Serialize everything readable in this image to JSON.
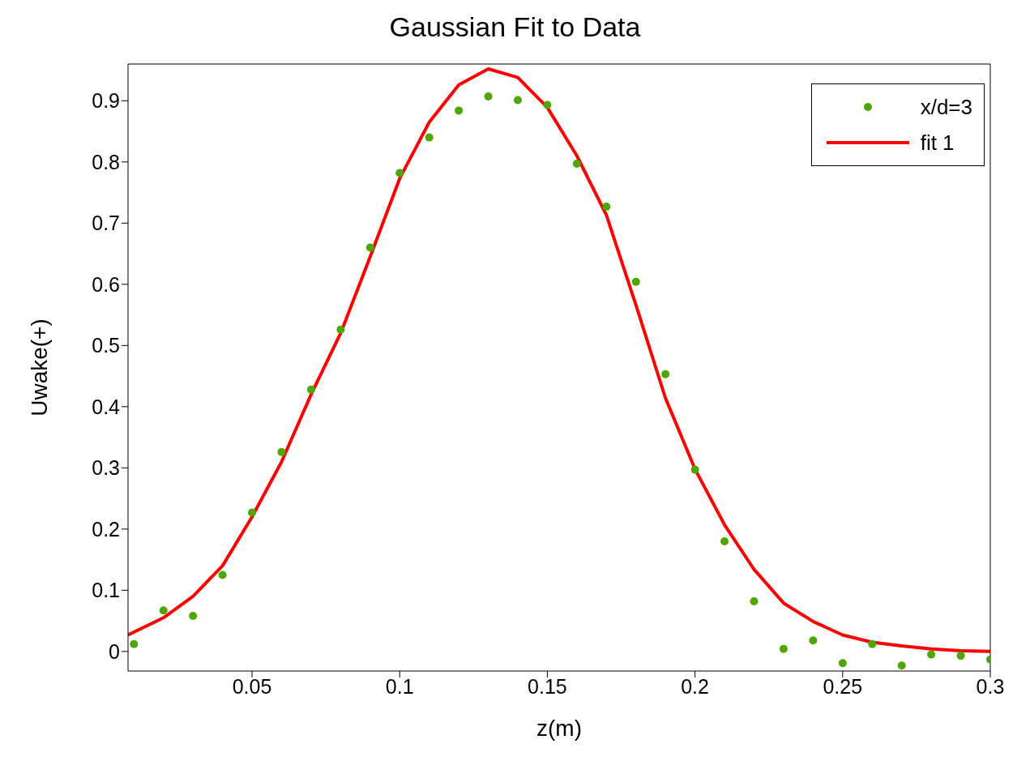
{
  "chart_data": {
    "type": "scatter",
    "title": "Gaussian Fit to Data",
    "xlabel": "z(m)",
    "ylabel": "Uwake(+)",
    "xlim": [
      0.008,
      0.3
    ],
    "xticks": [
      0.05,
      0.1,
      0.15,
      0.2,
      0.25,
      0.3
    ],
    "ylim": [
      -0.032,
      0.96
    ],
    "yticks": [
      0,
      0.1,
      0.2,
      0.3,
      0.4,
      0.5,
      0.6,
      0.7,
      0.8,
      0.9
    ],
    "grid": false,
    "legend": "top right",
    "series": [
      {
        "name": "x/d=3",
        "marker": "circle",
        "color": "#4ea600",
        "x": [
          0.01,
          0.02,
          0.03,
          0.04,
          0.05,
          0.06,
          0.07,
          0.08,
          0.09,
          0.1,
          0.11,
          0.12,
          0.13,
          0.14,
          0.15,
          0.16,
          0.17,
          0.18,
          0.19,
          0.2,
          0.21,
          0.22,
          0.23,
          0.24,
          0.25,
          0.26,
          0.27,
          0.28,
          0.29,
          0.3
        ],
        "values": [
          0.012,
          0.067,
          0.058,
          0.125,
          0.227,
          0.326,
          0.428,
          0.526,
          0.66,
          0.782,
          0.84,
          0.884,
          0.907,
          0.901,
          0.893,
          0.797,
          0.727,
          0.604,
          0.453,
          0.297,
          0.18,
          0.082,
          0.004,
          0.018,
          -0.019,
          0.012,
          -0.023,
          -0.005,
          -0.007,
          -0.013
        ]
      },
      {
        "name": "fit 1",
        "type": "line",
        "marker": "none",
        "line_style": "solid",
        "color": "#ff0000",
        "x": [
          0.008,
          0.02,
          0.03,
          0.04,
          0.05,
          0.06,
          0.07,
          0.08,
          0.09,
          0.1,
          0.11,
          0.12,
          0.13,
          0.14,
          0.15,
          0.16,
          0.17,
          0.18,
          0.19,
          0.2,
          0.21,
          0.22,
          0.23,
          0.24,
          0.25,
          0.26,
          0.27,
          0.28,
          0.29,
          0.3
        ],
        "values": [
          0.027,
          0.055,
          0.09,
          0.14,
          0.22,
          0.31,
          0.42,
          0.52,
          0.645,
          0.773,
          0.865,
          0.926,
          0.952,
          0.938,
          0.889,
          0.81,
          0.713,
          0.566,
          0.414,
          0.298,
          0.207,
          0.134,
          0.079,
          0.049,
          0.027,
          0.015,
          0.009,
          0.004,
          0.001,
          0
        ]
      }
    ]
  }
}
